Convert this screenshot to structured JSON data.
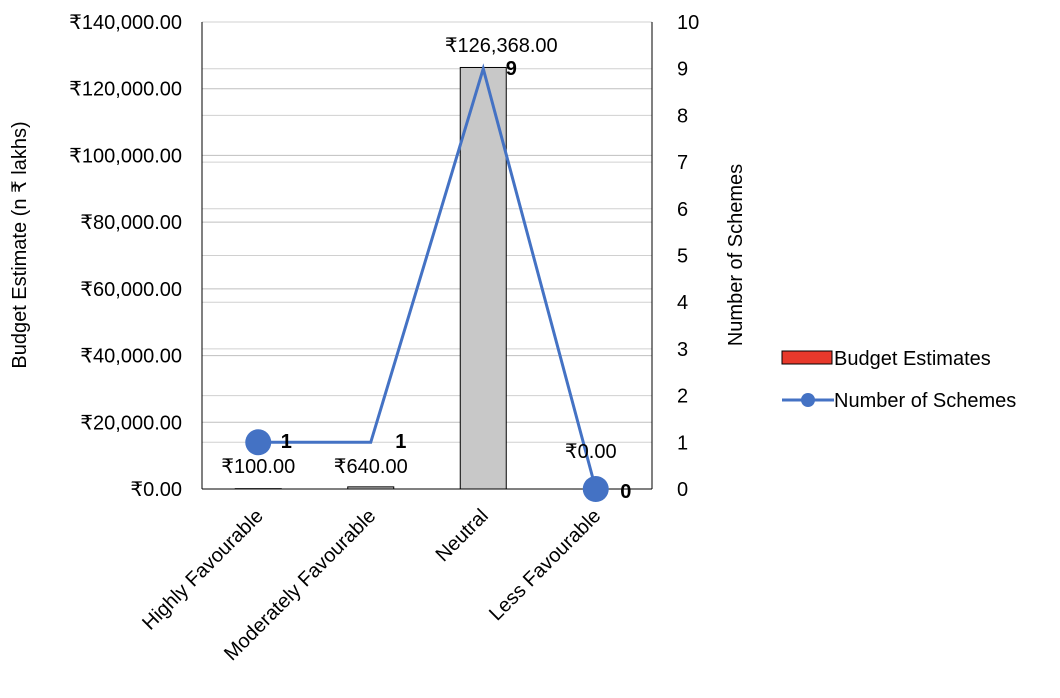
{
  "chart_data": {
    "type": "bar",
    "categories": [
      "Highly Favourable",
      "Moderately Favourable",
      "Neutral",
      "Less Favourable"
    ],
    "series": [
      {
        "name": "Budget Estimates",
        "type": "bar",
        "axis": "left",
        "values": [
          100,
          640,
          126368,
          0
        ],
        "labels": [
          "₹100.00",
          "₹640.00",
          "₹126,368.00",
          "₹0.00"
        ],
        "fill": "#c8c8c8",
        "legend_color": "#e8392b"
      },
      {
        "name": "Number of Schemes",
        "type": "line",
        "axis": "right",
        "values": [
          1,
          1,
          9,
          0
        ],
        "labels": [
          "1",
          "1",
          "9",
          "0"
        ],
        "color": "#4472c4"
      }
    ],
    "ylabel": "Budget Estimate (n ₹ lakhs)",
    "y2label": "Number of Schemes",
    "ylim": [
      0,
      140000
    ],
    "y2lim": [
      0,
      10
    ],
    "yticks": [
      "₹0.00",
      "₹20,000.00",
      "₹40,000.00",
      "₹60,000.00",
      "₹80,000.00",
      "₹100,000.00",
      "₹120,000.00",
      "₹140,000.00"
    ],
    "y2ticks": [
      "0",
      "1",
      "2",
      "3",
      "4",
      "5",
      "6",
      "7",
      "8",
      "9",
      "10"
    ],
    "grid": true,
    "legend_position": "right"
  }
}
